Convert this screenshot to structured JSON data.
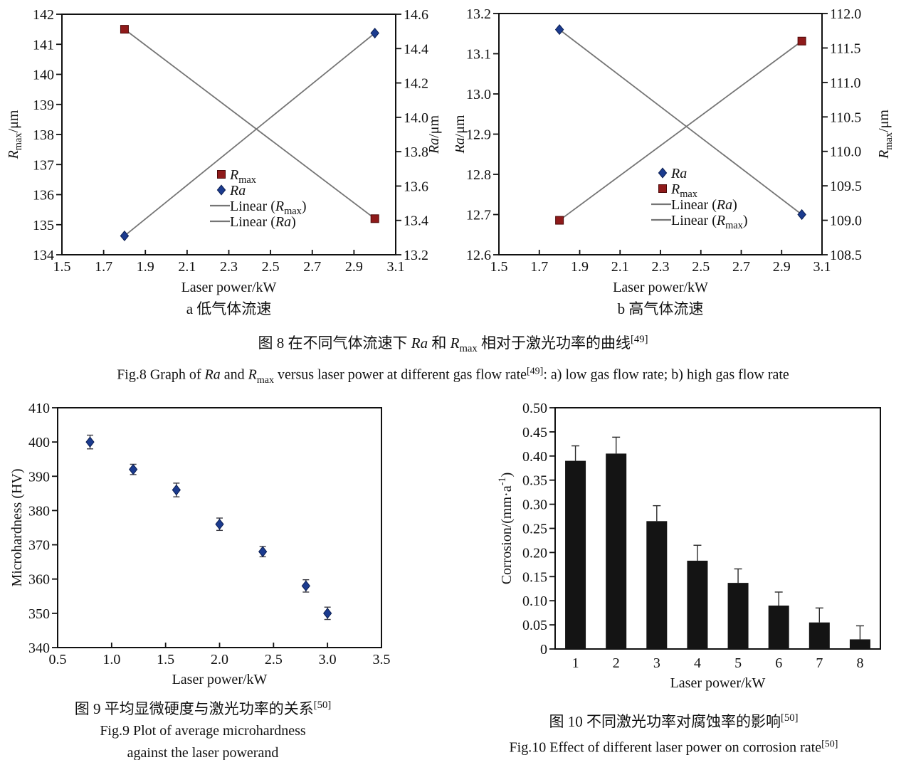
{
  "colors": {
    "axis": "#111111",
    "text": "#111111",
    "trend_line": "#757575",
    "rmax_fill": "#8f1a1a",
    "rmax_stroke": "#4d0909",
    "ra_fill": "#1b3b8f",
    "ra_stroke": "#0c1f52",
    "bar_fill": "#141414",
    "error_bar": "#3c3c44"
  },
  "figure8": {
    "caption_zh": "图 8  在不同气体流速下 Ra 和 R_max 相对于激光功率的曲线^[49]",
    "caption_en": "Fig.8 Graph of Ra and R_max versus laser power at different gas flow rate^[49]: a) low gas flow rate; b) high gas flow rate"
  },
  "figure9": {
    "caption_zh": "图 9  平均显微硬度与激光功率的关系^[50]",
    "caption_en_line1": "Fig.9 Plot of average microhardness",
    "caption_en_line2": "against the laser powerand"
  },
  "figure10": {
    "caption_zh": "图 10  不同激光功率对腐蚀率的影响^[50]",
    "caption_en": "Fig.10 Effect of different laser power on corrosion rate^[50]"
  },
  "chart_data": [
    {
      "id": "fig8a",
      "type": "scatter",
      "panel_label": "a 低气体流速",
      "xlabel": "Laser power/kW",
      "xlim": [
        1.5,
        3.1
      ],
      "x_ticks": [
        "1.5",
        "1.7",
        "1.9",
        "2.1",
        "2.3",
        "2.5",
        "2.7",
        "2.9",
        "3.1"
      ],
      "left_axis": {
        "label": "R_max/μm",
        "lim": [
          134,
          142
        ],
        "ticks": [
          "134",
          "135",
          "136",
          "137",
          "138",
          "139",
          "140",
          "141",
          "142"
        ]
      },
      "right_axis": {
        "label": "Ra/μm",
        "lim": [
          13.2,
          14.6
        ],
        "ticks": [
          "13.2",
          "13.4",
          "13.6",
          "13.8",
          "14.0",
          "14.2",
          "14.4",
          "14.6"
        ]
      },
      "series": [
        {
          "name": "R_max",
          "axis": "left",
          "marker": "square",
          "points": [
            [
              1.8,
              141.5
            ],
            [
              3.0,
              135.2
            ]
          ]
        },
        {
          "name": "Ra",
          "axis": "right",
          "marker": "diamond",
          "points": [
            [
              1.8,
              13.31
            ],
            [
              3.0,
              14.49
            ]
          ]
        }
      ],
      "legend": [
        {
          "label": "R_max",
          "type": "square"
        },
        {
          "label": "Ra",
          "type": "diamond"
        },
        {
          "label": "Linear (R_max)",
          "type": "line"
        },
        {
          "label": "Linear (Ra)",
          "type": "line"
        }
      ]
    },
    {
      "id": "fig8b",
      "type": "scatter",
      "panel_label": "b 高气体流速",
      "xlabel": "Laser power/kW",
      "xlim": [
        1.5,
        3.1
      ],
      "x_ticks": [
        "1.5",
        "1.7",
        "1.9",
        "2.1",
        "2.3",
        "2.5",
        "2.7",
        "2.9",
        "3.1"
      ],
      "left_axis": {
        "label": "Ra/μm",
        "lim": [
          12.6,
          13.2
        ],
        "ticks": [
          "12.6",
          "12.7",
          "12.8",
          "12.9",
          "13.0",
          "13.1",
          "13.2"
        ]
      },
      "right_axis": {
        "label": "R_max/μm",
        "lim": [
          108.5,
          112.0
        ],
        "ticks": [
          "108.5",
          "109.0",
          "109.5",
          "110.0",
          "110.5",
          "111.0",
          "111.5",
          "112.0"
        ]
      },
      "series": [
        {
          "name": "Ra",
          "axis": "left",
          "marker": "diamond",
          "points": [
            [
              1.8,
              13.16
            ],
            [
              3.0,
              12.7
            ]
          ]
        },
        {
          "name": "R_max",
          "axis": "right",
          "marker": "square",
          "points": [
            [
              1.8,
              109.0
            ],
            [
              3.0,
              111.6
            ]
          ]
        }
      ],
      "legend": [
        {
          "label": "Ra",
          "type": "diamond"
        },
        {
          "label": "R_max",
          "type": "square"
        },
        {
          "label": "Linear (Ra)",
          "type": "line"
        },
        {
          "label": "Linear (R_max)",
          "type": "line"
        }
      ]
    },
    {
      "id": "fig9",
      "type": "scatter-error",
      "xlabel": "Laser power/kW",
      "ylabel": "Microhardness (HV)",
      "xlim": [
        0.5,
        3.5
      ],
      "x_ticks": [
        "0.5",
        "1.0",
        "1.5",
        "2.0",
        "2.5",
        "3.0",
        "3.5"
      ],
      "ylim": [
        340,
        410
      ],
      "y_ticks": [
        "340",
        "350",
        "360",
        "370",
        "380",
        "390",
        "400",
        "410"
      ],
      "points": [
        {
          "x": 0.8,
          "y": 400,
          "err": 2.0
        },
        {
          "x": 1.2,
          "y": 392,
          "err": 1.5
        },
        {
          "x": 1.6,
          "y": 386,
          "err": 2.0
        },
        {
          "x": 2.0,
          "y": 376,
          "err": 1.8
        },
        {
          "x": 2.4,
          "y": 368,
          "err": 1.5
        },
        {
          "x": 2.8,
          "y": 358,
          "err": 1.8
        },
        {
          "x": 3.0,
          "y": 350,
          "err": 1.8
        }
      ]
    },
    {
      "id": "fig10",
      "type": "bar",
      "xlabel": "Laser power/kW",
      "ylabel": "Corrosion/(mm·a^{-1})",
      "categories": [
        "1",
        "2",
        "3",
        "4",
        "5",
        "6",
        "7",
        "8"
      ],
      "values": [
        0.39,
        0.405,
        0.265,
        0.183,
        0.137,
        0.09,
        0.055,
        0.02
      ],
      "errors_upper": [
        0.031,
        0.034,
        0.032,
        0.032,
        0.029,
        0.028,
        0.03,
        0.028
      ],
      "ylim": [
        0,
        0.5
      ],
      "y_ticks": [
        "0",
        "0.05",
        "0.10",
        "0.15",
        "0.20",
        "0.25",
        "0.30",
        "0.35",
        "0.40",
        "0.45",
        "0.50"
      ]
    }
  ]
}
